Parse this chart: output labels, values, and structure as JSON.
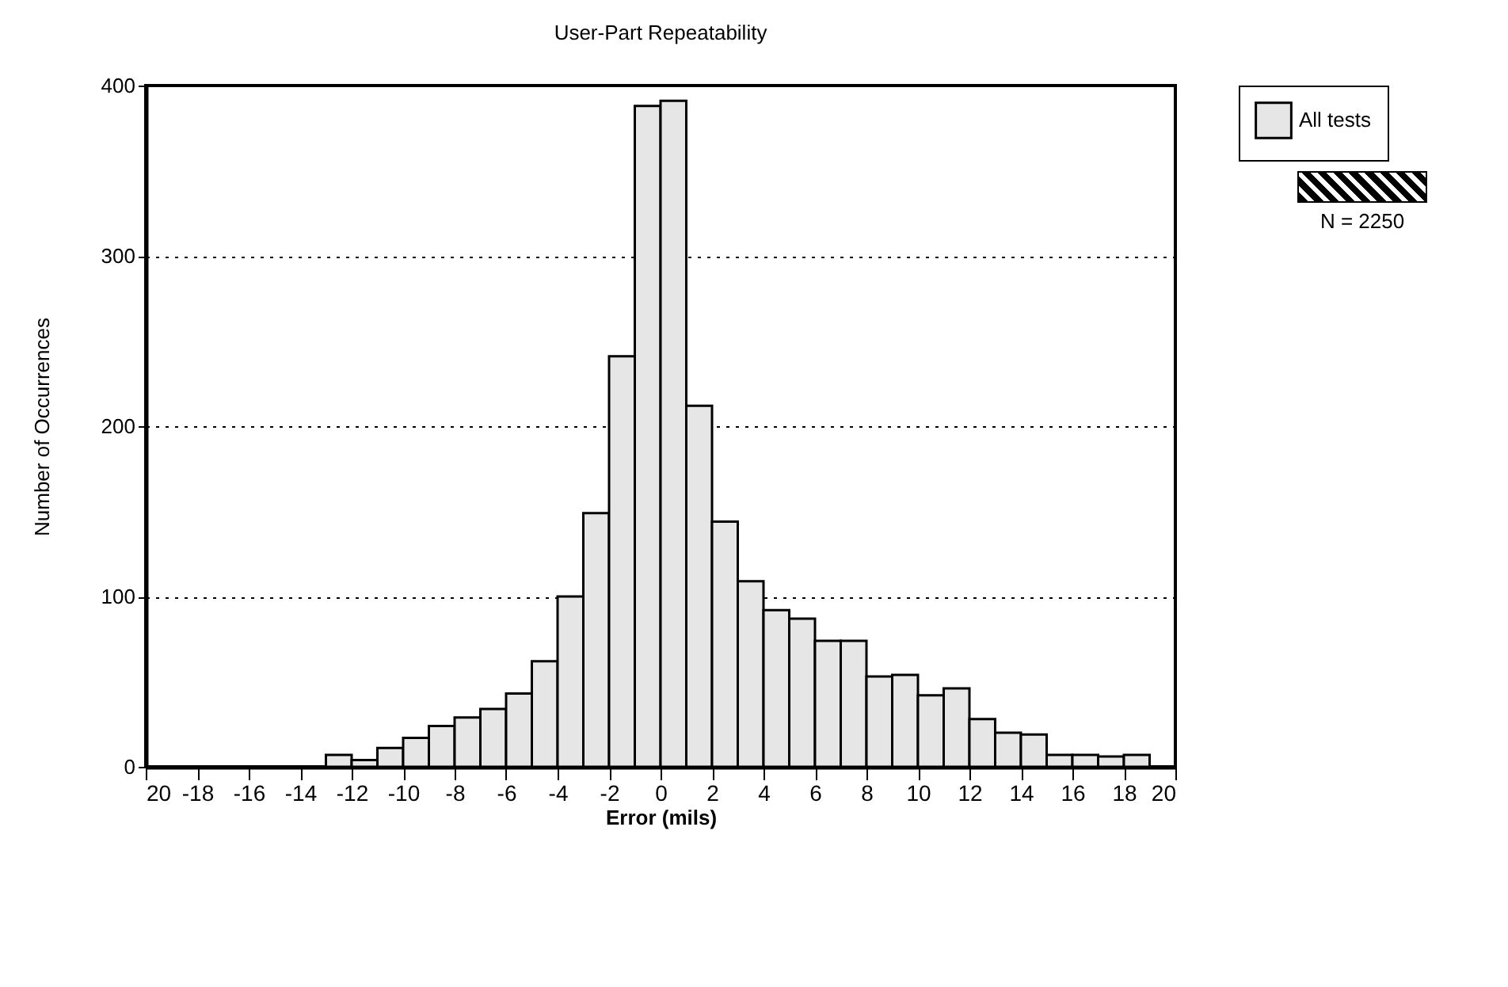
{
  "chart_data": {
    "type": "histogram",
    "title": "User-Part Repeatability",
    "xlabel": "Error (mils)",
    "ylabel": "Number of Occurrences",
    "bins": [
      -13,
      -12,
      -11,
      -10,
      -9,
      -8,
      -7,
      -6,
      -5,
      -4,
      -3,
      -2,
      -1,
      0,
      1,
      2,
      3,
      4,
      5,
      6,
      7,
      8,
      9,
      10,
      11,
      12,
      13,
      14,
      15,
      16,
      17,
      18,
      19
    ],
    "series": [
      {
        "name": "All tests",
        "color": "#e6e6e6",
        "values": [
          7,
          4,
          11,
          17,
          24,
          29,
          34,
          43,
          62,
          100,
          149,
          241,
          388,
          391,
          212,
          144,
          109,
          92,
          87,
          74,
          74,
          53,
          54,
          42,
          46,
          28,
          20,
          19,
          7,
          7,
          6,
          7
        ]
      }
    ],
    "xlim": [
      -20,
      20
    ],
    "xticks": [
      {
        "value": -20,
        "label": "20"
      },
      -18,
      -16,
      -14,
      -12,
      -10,
      -8,
      -6,
      -4,
      -2,
      0,
      2,
      4,
      6,
      8,
      10,
      12,
      14,
      16,
      18,
      20
    ],
    "ylim": [
      0,
      400
    ],
    "yticks": [
      0,
      100,
      200,
      300,
      400
    ],
    "grid": "y",
    "legend": "top right",
    "annotations": [
      "N = 2250"
    ]
  }
}
